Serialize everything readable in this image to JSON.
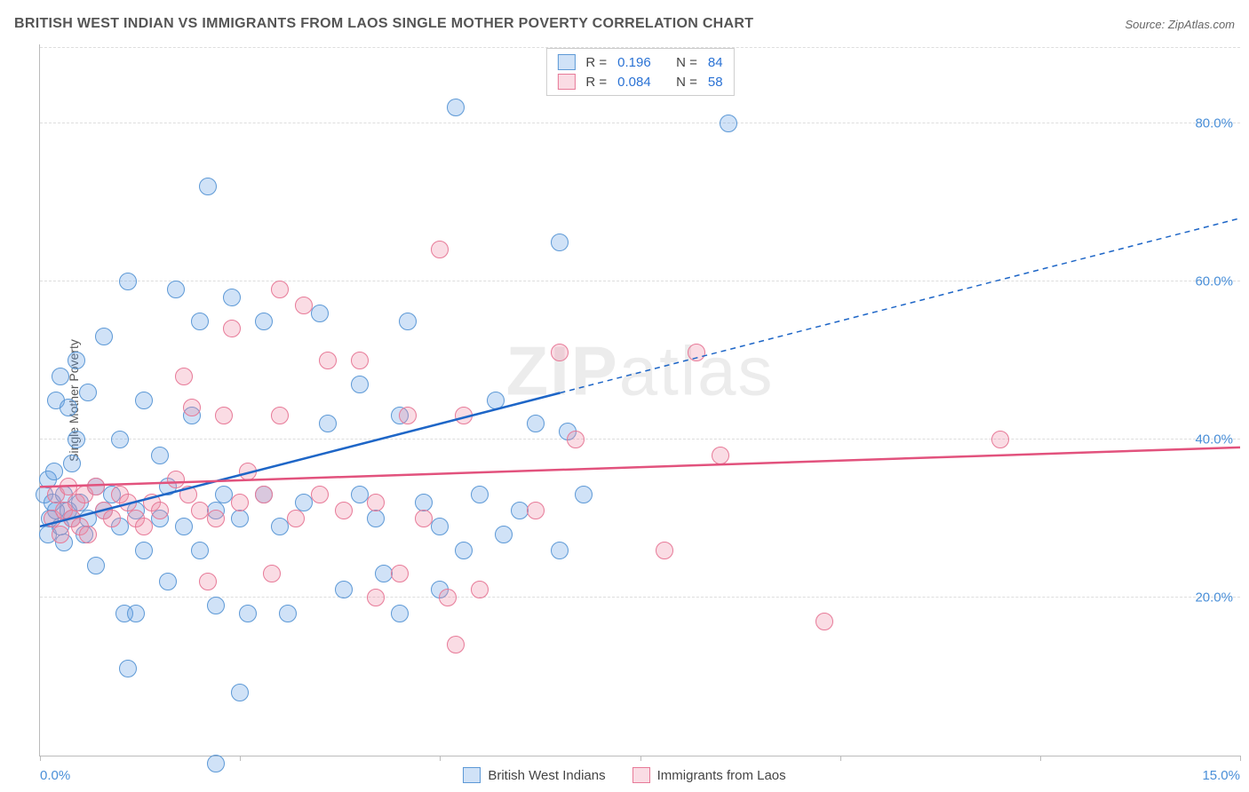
{
  "title": "BRITISH WEST INDIAN VS IMMIGRANTS FROM LAOS SINGLE MOTHER POVERTY CORRELATION CHART",
  "source": "Source: ZipAtlas.com",
  "watermark_a": "ZIP",
  "watermark_b": "atlas",
  "ylabel": "Single Mother Poverty",
  "chart": {
    "type": "scatter",
    "xlim": [
      0,
      15
    ],
    "ylim": [
      0,
      90
    ],
    "yticks": [
      20,
      40,
      60,
      80
    ],
    "ytick_labels": [
      "20.0%",
      "40.0%",
      "60.0%",
      "80.0%"
    ],
    "xmin_label": "0.0%",
    "xmax_label": "15.0%",
    "xtick_minor_step": 2.5,
    "grid_color": "#dddddd",
    "axis_color": "#bbbbbb",
    "background_color": "#ffffff",
    "marker_radius": 9,
    "marker_border_width": 1.5
  },
  "series": [
    {
      "key": "bwi",
      "label": "British West Indians",
      "fill": "rgba(100,160,230,0.30)",
      "stroke": "#5d99d6",
      "trend_color": "#1e66c7",
      "r_value": "0.196",
      "n_value": "84",
      "trend": {
        "y_at_xmin": 29,
        "y_at_xmax": 68,
        "solid_until_x": 6.5
      },
      "points": [
        [
          0.05,
          33
        ],
        [
          0.1,
          35
        ],
        [
          0.1,
          28
        ],
        [
          0.12,
          30
        ],
        [
          0.15,
          32
        ],
        [
          0.18,
          36
        ],
        [
          0.2,
          31
        ],
        [
          0.2,
          45
        ],
        [
          0.25,
          29
        ],
        [
          0.25,
          48
        ],
        [
          0.3,
          33
        ],
        [
          0.3,
          27
        ],
        [
          0.35,
          44
        ],
        [
          0.35,
          31
        ],
        [
          0.4,
          37
        ],
        [
          0.4,
          30
        ],
        [
          0.45,
          40
        ],
        [
          0.45,
          50
        ],
        [
          0.5,
          32
        ],
        [
          0.55,
          28
        ],
        [
          0.6,
          30
        ],
        [
          0.6,
          46
        ],
        [
          0.7,
          34
        ],
        [
          0.7,
          24
        ],
        [
          0.8,
          31
        ],
        [
          0.8,
          53
        ],
        [
          0.9,
          33
        ],
        [
          1.0,
          29
        ],
        [
          1.0,
          40
        ],
        [
          1.05,
          18
        ],
        [
          1.1,
          11
        ],
        [
          1.1,
          60
        ],
        [
          1.2,
          31
        ],
        [
          1.2,
          18
        ],
        [
          1.3,
          26
        ],
        [
          1.3,
          45
        ],
        [
          1.5,
          30
        ],
        [
          1.5,
          38
        ],
        [
          1.6,
          34
        ],
        [
          1.6,
          22
        ],
        [
          1.7,
          59
        ],
        [
          1.8,
          29
        ],
        [
          1.9,
          43
        ],
        [
          2.0,
          26
        ],
        [
          2.0,
          55
        ],
        [
          2.1,
          72
        ],
        [
          2.2,
          31
        ],
        [
          2.2,
          19
        ],
        [
          2.2,
          -1
        ],
        [
          2.3,
          33
        ],
        [
          2.4,
          58
        ],
        [
          2.5,
          30
        ],
        [
          2.5,
          8
        ],
        [
          2.6,
          18
        ],
        [
          2.8,
          33
        ],
        [
          2.8,
          55
        ],
        [
          3.0,
          29
        ],
        [
          3.1,
          18
        ],
        [
          3.3,
          32
        ],
        [
          3.5,
          56
        ],
        [
          3.6,
          42
        ],
        [
          3.8,
          21
        ],
        [
          4.0,
          33
        ],
        [
          4.0,
          47
        ],
        [
          4.2,
          30
        ],
        [
          4.3,
          23
        ],
        [
          4.5,
          18
        ],
        [
          4.5,
          43
        ],
        [
          4.6,
          55
        ],
        [
          4.8,
          32
        ],
        [
          5.0,
          29
        ],
        [
          5.0,
          21
        ],
        [
          5.2,
          82
        ],
        [
          5.3,
          26
        ],
        [
          5.5,
          33
        ],
        [
          5.7,
          45
        ],
        [
          5.8,
          28
        ],
        [
          6.0,
          31
        ],
        [
          6.2,
          42
        ],
        [
          6.5,
          26
        ],
        [
          6.6,
          41
        ],
        [
          6.5,
          65
        ],
        [
          6.8,
          33
        ],
        [
          8.6,
          80
        ]
      ]
    },
    {
      "key": "laos",
      "label": "Immigrants from Laos",
      "fill": "rgba(240,140,165,0.30)",
      "stroke": "#e77a98",
      "trend_color": "#e2527d",
      "r_value": "0.084",
      "n_value": "58",
      "trend": {
        "y_at_xmin": 34,
        "y_at_xmax": 39,
        "solid_until_x": 15
      },
      "points": [
        [
          0.15,
          30
        ],
        [
          0.2,
          33
        ],
        [
          0.25,
          28
        ],
        [
          0.3,
          31
        ],
        [
          0.35,
          34
        ],
        [
          0.4,
          30
        ],
        [
          0.45,
          32
        ],
        [
          0.5,
          29
        ],
        [
          0.55,
          33
        ],
        [
          0.6,
          28
        ],
        [
          0.7,
          34
        ],
        [
          0.8,
          31
        ],
        [
          0.9,
          30
        ],
        [
          1.0,
          33
        ],
        [
          1.1,
          32
        ],
        [
          1.2,
          30
        ],
        [
          1.3,
          29
        ],
        [
          1.4,
          32
        ],
        [
          1.5,
          31
        ],
        [
          1.7,
          35
        ],
        [
          1.8,
          48
        ],
        [
          1.85,
          33
        ],
        [
          1.9,
          44
        ],
        [
          2.0,
          31
        ],
        [
          2.1,
          22
        ],
        [
          2.2,
          30
        ],
        [
          2.3,
          43
        ],
        [
          2.4,
          54
        ],
        [
          2.5,
          32
        ],
        [
          2.6,
          36
        ],
        [
          2.8,
          33
        ],
        [
          2.9,
          23
        ],
        [
          3.0,
          43
        ],
        [
          3.0,
          59
        ],
        [
          3.2,
          30
        ],
        [
          3.3,
          57
        ],
        [
          3.5,
          33
        ],
        [
          3.6,
          50
        ],
        [
          3.8,
          31
        ],
        [
          4.0,
          50
        ],
        [
          4.2,
          32
        ],
        [
          4.2,
          20
        ],
        [
          4.5,
          23
        ],
        [
          4.6,
          43
        ],
        [
          4.8,
          30
        ],
        [
          5.0,
          64
        ],
        [
          5.1,
          20
        ],
        [
          5.2,
          14
        ],
        [
          5.3,
          43
        ],
        [
          5.5,
          21
        ],
        [
          6.2,
          31
        ],
        [
          6.5,
          51
        ],
        [
          6.7,
          40
        ],
        [
          7.8,
          26
        ],
        [
          8.2,
          51
        ],
        [
          8.5,
          38
        ],
        [
          9.8,
          17
        ],
        [
          12.0,
          40
        ]
      ]
    }
  ]
}
